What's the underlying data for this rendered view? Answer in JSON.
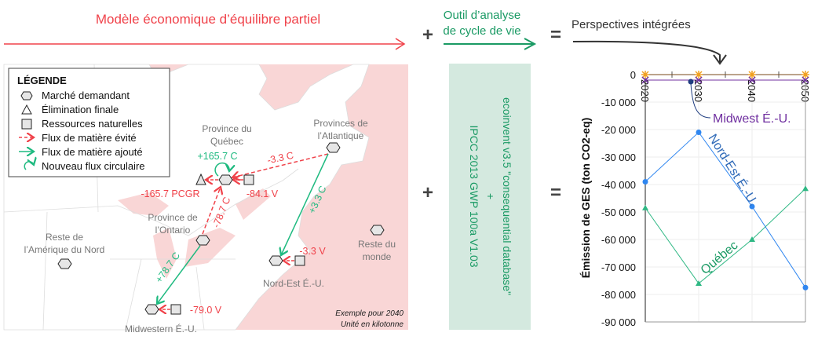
{
  "header": {
    "economic_model": "Modèle économique d’équilibre partiel",
    "plus": "+",
    "equals": "=",
    "lca_tool_line1": "Outil d’analyse",
    "lca_tool_line2": "de cycle de vie",
    "integrated": "Perspectives intégrées"
  },
  "colors": {
    "red": "#f0424a",
    "green": "#1a9a64",
    "map_pink": "#f9d6d6",
    "lca_box": "#d4e9df",
    "nord_est": "#2f86f0",
    "quebec": "#2fb884",
    "midwest": "#7030a0"
  },
  "legend": {
    "title": "LÉGENDE",
    "items": [
      {
        "icon": "hexagon",
        "label": "Marché demandant"
      },
      {
        "icon": "triangle",
        "label": "Élimination finale"
      },
      {
        "icon": "square",
        "label": "Ressources naturelles"
      },
      {
        "icon": "dashed-red-arrow",
        "label": "Flux de matière évité"
      },
      {
        "icon": "green-arrow",
        "label": "Flux de matière ajouté"
      },
      {
        "icon": "circular-arrow",
        "label": "Nouveau flux circulaire"
      }
    ]
  },
  "map": {
    "regions": {
      "quebec": [
        "Province du",
        "Québec"
      ],
      "atlantic": [
        "Provinces de",
        "l’Atlantique"
      ],
      "ontario": [
        "Province de",
        "l’Ontario"
      ],
      "rest_na": [
        "Reste de",
        "l’Amérique du Nord"
      ],
      "rest_world": [
        "Reste du",
        "monde"
      ],
      "northeast": "Nord-Est É.-U.",
      "midwest": "Midwestern É.-U."
    },
    "flows": {
      "qc_circular": "+165.7 C",
      "atl_to_qc": "-3.3 C",
      "qc_disposal": "-165.7 PCGR",
      "qc_resource": "-84.1 V",
      "on_to_qc": "-78.7 C",
      "atl_to_ne": "+3.3 C",
      "ne_resource": "-3.3 V",
      "on_to_mw": "+78.7 C",
      "mw_resource": "-79.0 V"
    },
    "note_line1": "Exemple pour 2040",
    "note_line2": "Unité en kilotonne"
  },
  "lca_box": {
    "line1": "ecoinvent v3.5 \"consequential database\"",
    "plus": "+",
    "line2": "IPCC 2013 GWP 100a V1.03"
  },
  "chart_data": {
    "type": "line",
    "ylabel": "Émission de  GES (ton CO2-eq)",
    "x": [
      2020,
      2030,
      2040,
      2050
    ],
    "x_tick_labels": [
      "2020",
      "2030",
      "2040",
      "2050"
    ],
    "ylim": [
      -90000,
      0
    ],
    "y_ticks": [
      0,
      -10000,
      -20000,
      -30000,
      -40000,
      -50000,
      -60000,
      -70000,
      -80000,
      -90000
    ],
    "y_tick_labels": [
      "0",
      "-10 000",
      "-20 000",
      "-30 000",
      "-40 000",
      "-50 000",
      "-60 000",
      "-70 000",
      "-80 000",
      "-90 000"
    ],
    "grid": true,
    "series": [
      {
        "name": "Nord-Est É.-U.",
        "color": "#2f86f0",
        "marker": "circle",
        "values": [
          -39000,
          -21000,
          -48000,
          -77500
        ]
      },
      {
        "name": "Québec",
        "color": "#2fb884",
        "marker": "triangle",
        "values": [
          -48500,
          -76000,
          -60000,
          -41500
        ]
      },
      {
        "name": "Midwest É.-U.",
        "color": "#7030a0",
        "marker": "x",
        "values": [
          -2000,
          -2000,
          -2000,
          -2000
        ]
      },
      {
        "color": "#7a4a1a",
        "marker": "star",
        "values": [
          0,
          0,
          0,
          0
        ]
      }
    ]
  }
}
